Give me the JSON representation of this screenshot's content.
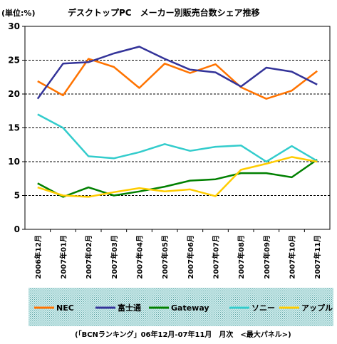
{
  "unit_label": "(単位:%)",
  "source_note": "(「BCNランキング」06年12月-07年11月　月次　<最大パネル>)",
  "chart_data": {
    "type": "line",
    "title": "デスクトップPC　メーカー別販売台数シェア推移",
    "categories": [
      "2006年12月",
      "2007年01月",
      "2007年02月",
      "2007年03月",
      "2007年04月",
      "2007年05月",
      "2007年06月",
      "2007年07月",
      "2007年08月",
      "2007年09月",
      "2007年10月",
      "2007年11月"
    ],
    "ylim": [
      0,
      30
    ],
    "yticks": [
      "0",
      "5",
      "10",
      "15",
      "20",
      "25",
      "30"
    ],
    "grid": "horizontal dashed",
    "legend_position": "bottom",
    "series": [
      {
        "name": "NEC",
        "color": "#ff7300",
        "values": [
          21.9,
          19.8,
          25.2,
          24.0,
          20.9,
          24.5,
          23.1,
          24.4,
          21.0,
          19.3,
          20.5,
          23.4
        ]
      },
      {
        "name": "富士通",
        "color": "#333399",
        "values": [
          19.3,
          24.5,
          24.7,
          26.0,
          27.0,
          25.2,
          23.6,
          23.2,
          21.1,
          23.9,
          23.3,
          21.4
        ]
      },
      {
        "name": "Gateway",
        "color": "#008000",
        "values": [
          6.8,
          4.8,
          6.2,
          5.0,
          5.6,
          6.3,
          7.2,
          7.4,
          8.3,
          8.3,
          7.7,
          10.3
        ]
      },
      {
        "name": "ソニー",
        "color": "#33cccc",
        "values": [
          17.0,
          15.0,
          10.8,
          10.5,
          11.4,
          12.6,
          11.6,
          12.2,
          12.4,
          10.0,
          12.3,
          10.1
        ]
      },
      {
        "name": "アップル",
        "color": "#ffcc00",
        "values": [
          6.2,
          5.0,
          4.8,
          5.5,
          6.1,
          5.6,
          5.9,
          4.9,
          8.8,
          9.7,
          10.7,
          10.0
        ]
      }
    ]
  }
}
